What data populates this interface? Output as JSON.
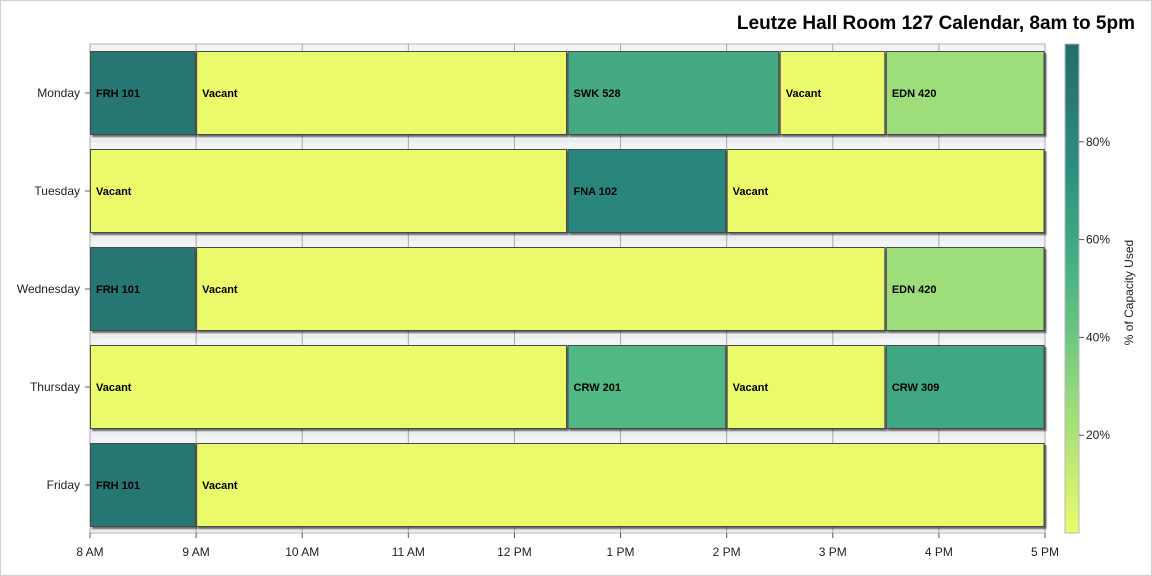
{
  "chart_data": {
    "type": "bar",
    "subtype": "horizontal-timeline",
    "title": "Leutze Hall Room 127 Calendar, 8am to 5pm",
    "x_ticks": [
      "8 AM",
      "9 AM",
      "10 AM",
      "11 AM",
      "12 PM",
      "1 PM",
      "2 PM",
      "3 PM",
      "4 PM",
      "5 PM"
    ],
    "xlim": [
      8,
      17
    ],
    "grid": true,
    "days": [
      {
        "day": "Monday",
        "events": [
          {
            "label": "FRH 101",
            "start": 8.0,
            "end": 9.0,
            "pct": 92
          },
          {
            "label": "Vacant",
            "start": 9.0,
            "end": 12.5,
            "pct": 0
          },
          {
            "label": "SWK 528",
            "start": 12.5,
            "end": 14.5,
            "pct": 58
          },
          {
            "label": "Vacant",
            "start": 14.5,
            "end": 15.5,
            "pct": 0
          },
          {
            "label": "EDN 420",
            "start": 15.5,
            "end": 17.0,
            "pct": 25
          }
        ]
      },
      {
        "day": "Tuesday",
        "events": [
          {
            "label": "Vacant",
            "start": 8.0,
            "end": 12.5,
            "pct": 0
          },
          {
            "label": "FNA 102",
            "start": 12.5,
            "end": 14.0,
            "pct": 80
          },
          {
            "label": "Vacant",
            "start": 14.0,
            "end": 17.0,
            "pct": 0
          }
        ]
      },
      {
        "day": "Wednesday",
        "events": [
          {
            "label": "FRH 101",
            "start": 8.0,
            "end": 9.0,
            "pct": 92
          },
          {
            "label": "Vacant",
            "start": 9.0,
            "end": 15.5,
            "pct": 0
          },
          {
            "label": "EDN 420",
            "start": 15.5,
            "end": 17.0,
            "pct": 25
          }
        ]
      },
      {
        "day": "Thursday",
        "events": [
          {
            "label": "Vacant",
            "start": 8.0,
            "end": 12.5,
            "pct": 0
          },
          {
            "label": "CRW 201",
            "start": 12.5,
            "end": 14.0,
            "pct": 50
          },
          {
            "label": "Vacant",
            "start": 14.0,
            "end": 15.5,
            "pct": 0
          },
          {
            "label": "CRW 309",
            "start": 15.5,
            "end": 17.0,
            "pct": 60
          }
        ]
      },
      {
        "day": "Friday",
        "events": [
          {
            "label": "FRH 101",
            "start": 8.0,
            "end": 9.0,
            "pct": 92
          },
          {
            "label": "Vacant",
            "start": 9.0,
            "end": 17.0,
            "pct": 0
          }
        ]
      }
    ],
    "colorbar": {
      "label": "% of Capacity Used",
      "ticks": [
        "20%",
        "40%",
        "60%",
        "80%"
      ],
      "tick_values": [
        20,
        40,
        60,
        80
      ],
      "range": [
        0,
        100
      ],
      "colors": [
        "#eafa6a",
        "#9ede7a",
        "#4fb885",
        "#2c8d80",
        "#266b6d"
      ]
    }
  }
}
